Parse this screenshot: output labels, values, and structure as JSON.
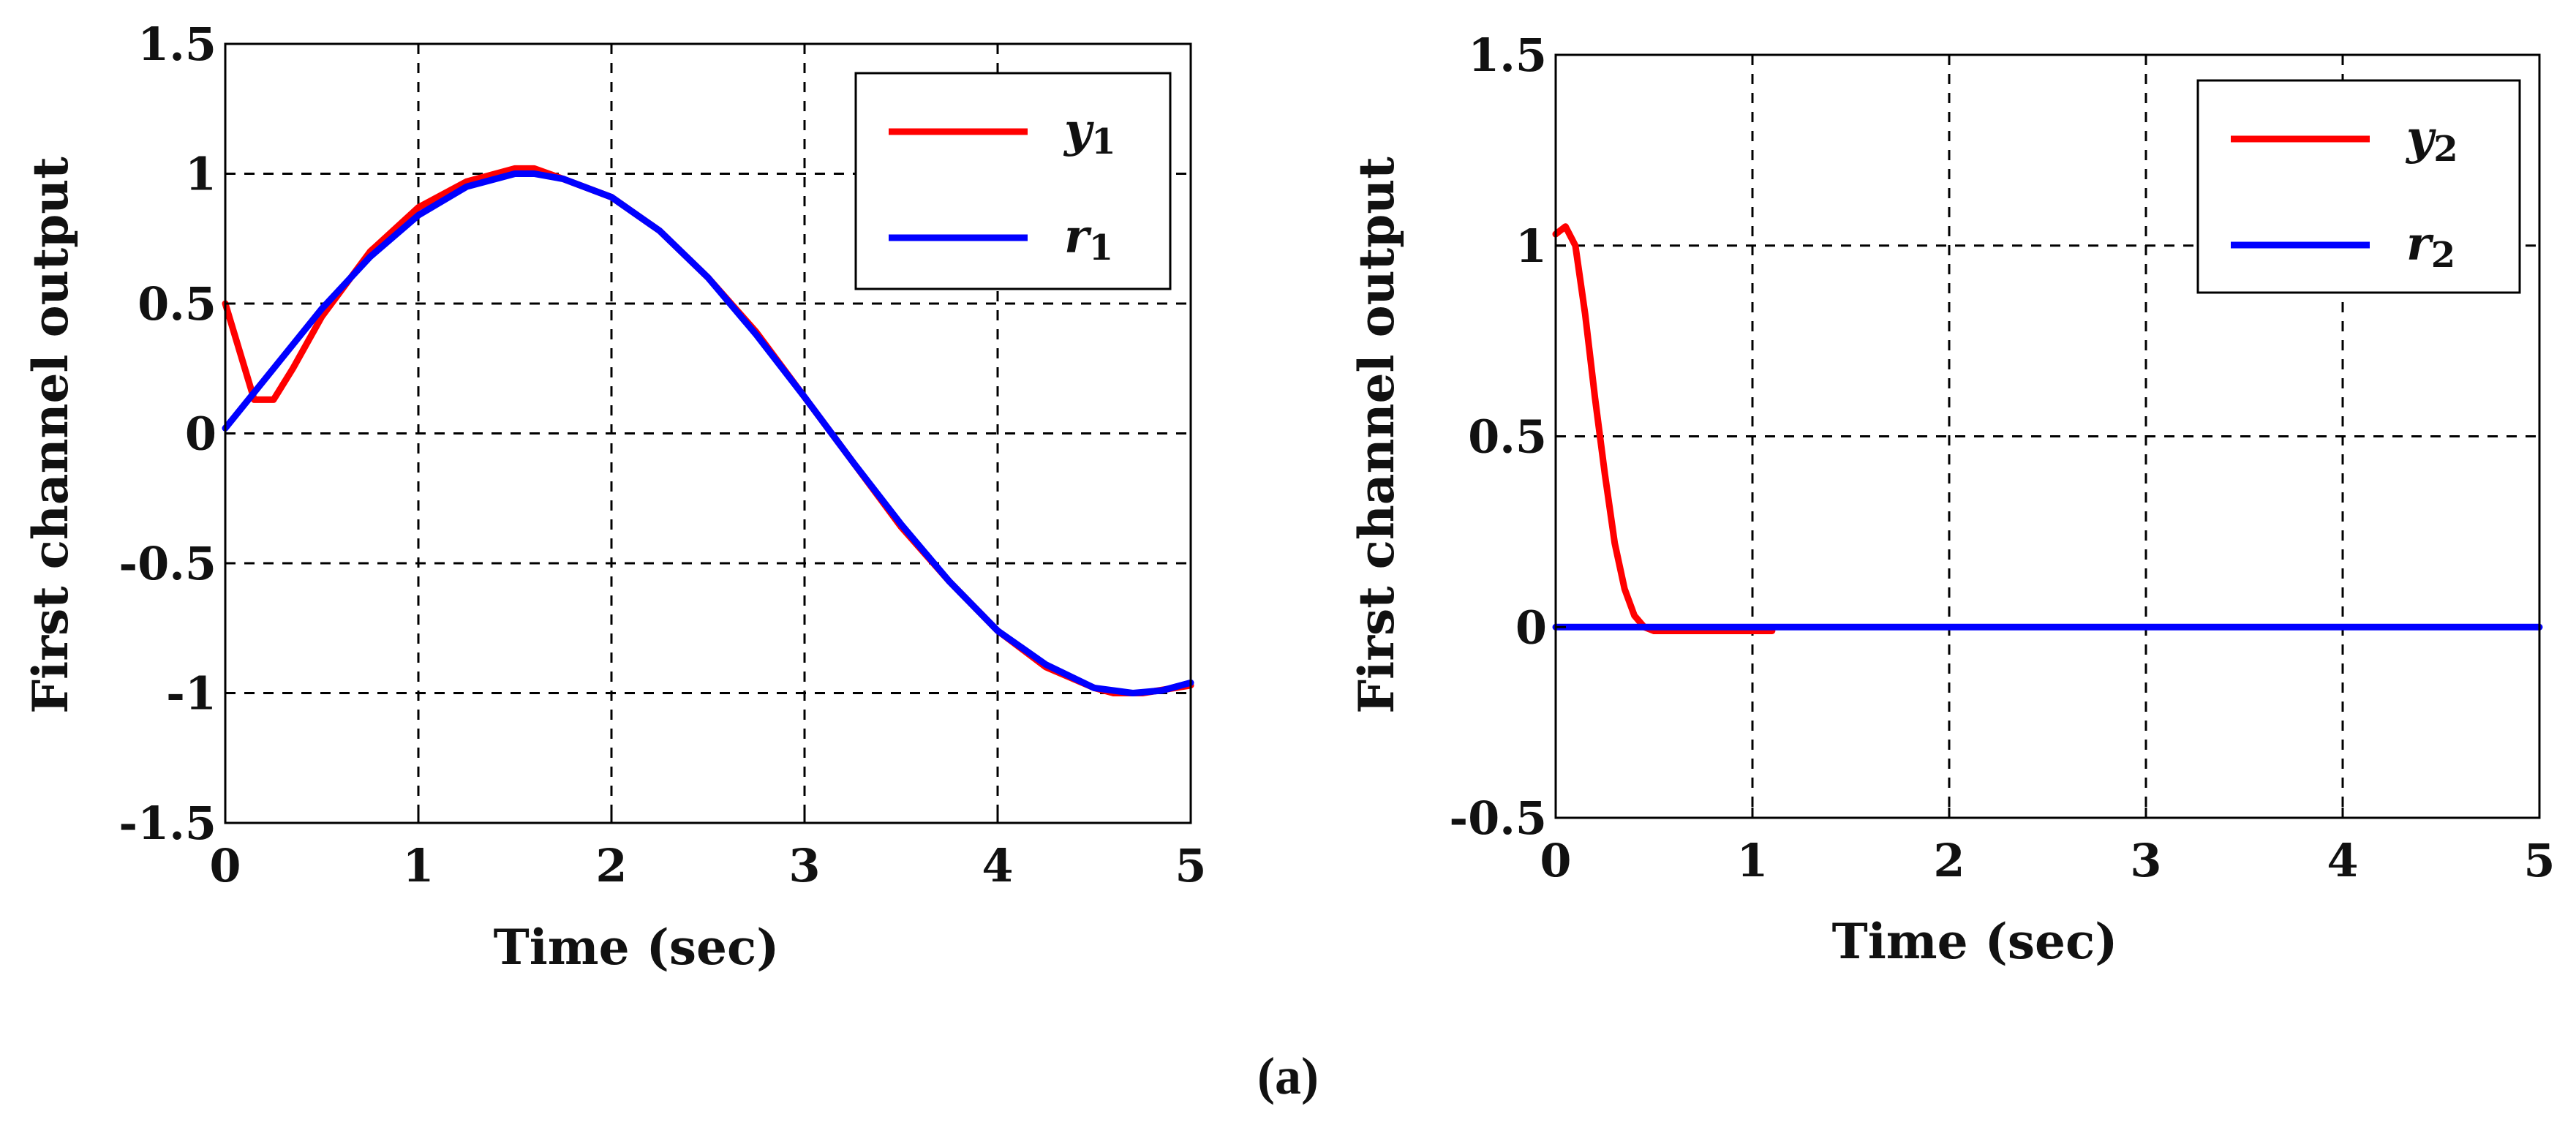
{
  "chart_data": [
    {
      "type": "line",
      "xlabel": "Time (sec)",
      "ylabel": "First channel output",
      "xlim": [
        0,
        5
      ],
      "ylim": [
        -1.5,
        1.5
      ],
      "xticks": [
        "0",
        "1",
        "2",
        "3",
        "4",
        "5"
      ],
      "yticks": [
        "1.5",
        "1",
        "0.5",
        "0",
        "-0.5",
        "-1",
        "-1.5"
      ],
      "grid": true,
      "legend_position": "top-right",
      "series": [
        {
          "name": "y",
          "subscript": "1",
          "color": "#ff0000",
          "x": [
            0,
            0.15,
            0.25,
            0.35,
            0.5,
            0.75,
            1,
            1.25,
            1.5,
            1.6,
            1.75,
            2,
            2.25,
            2.5,
            2.75,
            3,
            3.25,
            3.5,
            3.75,
            4,
            4.25,
            4.5,
            4.6,
            4.75,
            5
          ],
          "y": [
            0.5,
            0.13,
            0.13,
            0.25,
            0.45,
            0.7,
            0.87,
            0.97,
            1.02,
            1.02,
            0.98,
            0.91,
            0.78,
            0.6,
            0.39,
            0.14,
            -0.11,
            -0.36,
            -0.57,
            -0.76,
            -0.9,
            -0.98,
            -1.0,
            -1.0,
            -0.97
          ]
        },
        {
          "name": "r",
          "subscript": "1",
          "color": "#0000ff",
          "x": [
            0,
            0.25,
            0.5,
            0.75,
            1,
            1.25,
            1.5,
            1.6,
            1.75,
            2,
            2.25,
            2.5,
            2.75,
            3,
            3.25,
            3.5,
            3.75,
            4,
            4.25,
            4.5,
            4.7,
            4.85,
            5
          ],
          "y": [
            0.02,
            0.25,
            0.48,
            0.68,
            0.84,
            0.95,
            1.0,
            1.0,
            0.98,
            0.91,
            0.78,
            0.6,
            0.38,
            0.14,
            -0.11,
            -0.35,
            -0.57,
            -0.76,
            -0.89,
            -0.98,
            -1.0,
            -0.99,
            -0.96
          ]
        }
      ]
    },
    {
      "type": "line",
      "xlabel": "Time (sec)",
      "ylabel": "First channel output",
      "xlim": [
        0,
        5
      ],
      "ylim": [
        -0.5,
        1.5
      ],
      "xticks": [
        "0",
        "1",
        "2",
        "3",
        "4",
        "5"
      ],
      "yticks": [
        "1.5",
        "1",
        "0.5",
        "0",
        "-0.5"
      ],
      "grid": true,
      "legend_position": "top-right",
      "series": [
        {
          "name": "y",
          "subscript": "2",
          "color": "#ff0000",
          "x": [
            0,
            0.05,
            0.1,
            0.15,
            0.2,
            0.25,
            0.3,
            0.35,
            0.4,
            0.45,
            0.5,
            0.7,
            1.1
          ],
          "y": [
            1.03,
            1.05,
            1.0,
            0.82,
            0.6,
            0.4,
            0.22,
            0.1,
            0.03,
            0.0,
            -0.01,
            -0.01,
            -0.01
          ]
        },
        {
          "name": "r",
          "subscript": "2",
          "color": "#0000ff",
          "x": [
            0,
            5
          ],
          "y": [
            0,
            0
          ]
        }
      ]
    }
  ],
  "caption": "(a)"
}
